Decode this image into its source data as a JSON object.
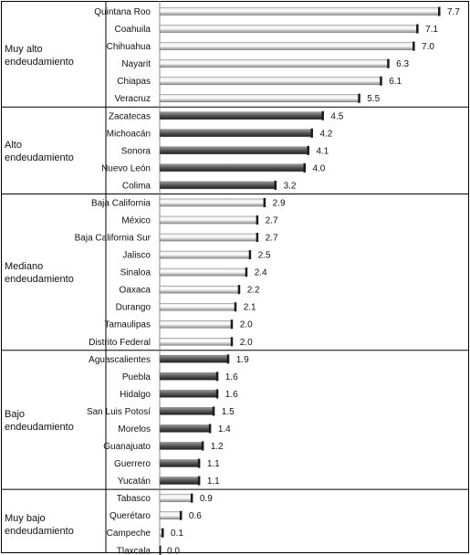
{
  "chart_data": {
    "type": "bar",
    "orientation": "horizontal",
    "xlim": [
      0,
      7.7
    ],
    "grid": false,
    "groups": [
      {
        "label": "Muy alto\nendeudamiento",
        "style": "light",
        "items": [
          {
            "state": "Quintana Roo",
            "value": 7.7
          },
          {
            "state": "Coahuila",
            "value": 7.1
          },
          {
            "state": "Chihuahua",
            "value": 7.0
          },
          {
            "state": "Nayarit",
            "value": 6.3
          },
          {
            "state": "Chiapas",
            "value": 6.1
          },
          {
            "state": "Veracruz",
            "value": 5.5
          }
        ]
      },
      {
        "label": "Alto\nendeudamiento",
        "style": "dark",
        "items": [
          {
            "state": "Zacatecas",
            "value": 4.5
          },
          {
            "state": "Michoacán",
            "value": 4.2
          },
          {
            "state": "Sonora",
            "value": 4.1
          },
          {
            "state": "Nuevo León",
            "value": 4.0
          },
          {
            "state": "Colima",
            "value": 3.2
          }
        ]
      },
      {
        "label": "Mediano\nendeudamiento",
        "style": "light",
        "items": [
          {
            "state": "Baja California",
            "value": 2.9
          },
          {
            "state": "México",
            "value": 2.7
          },
          {
            "state": "Baja California Sur",
            "value": 2.7
          },
          {
            "state": "Jalisco",
            "value": 2.5
          },
          {
            "state": "Sinaloa",
            "value": 2.4
          },
          {
            "state": "Oaxaca",
            "value": 2.2
          },
          {
            "state": "Durango",
            "value": 2.1
          },
          {
            "state": "Tamaulipas",
            "value": 2.0
          },
          {
            "state": "Distrito Federal",
            "value": 2.0
          }
        ]
      },
      {
        "label": "Bajo\nendeudamiento",
        "style": "dark",
        "items": [
          {
            "state": "Aguascalientes",
            "value": 1.9
          },
          {
            "state": "Puebla",
            "value": 1.6
          },
          {
            "state": "Hidalgo",
            "value": 1.6
          },
          {
            "state": "San Luis Potosí",
            "value": 1.5
          },
          {
            "state": "Morelos",
            "value": 1.4
          },
          {
            "state": "Guanajuato",
            "value": 1.2
          },
          {
            "state": "Guerrero",
            "value": 1.1
          },
          {
            "state": "Yucatán",
            "value": 1.1
          }
        ]
      },
      {
        "label": "Muy bajo\nendeudamiento",
        "style": "light",
        "items": [
          {
            "state": "Tabasco",
            "value": 0.9
          },
          {
            "state": "Querétaro",
            "value": 0.6
          },
          {
            "state": "Campeche",
            "value": 0.1
          },
          {
            "state": "Tlaxcala",
            "value": 0.0
          }
        ]
      }
    ]
  }
}
